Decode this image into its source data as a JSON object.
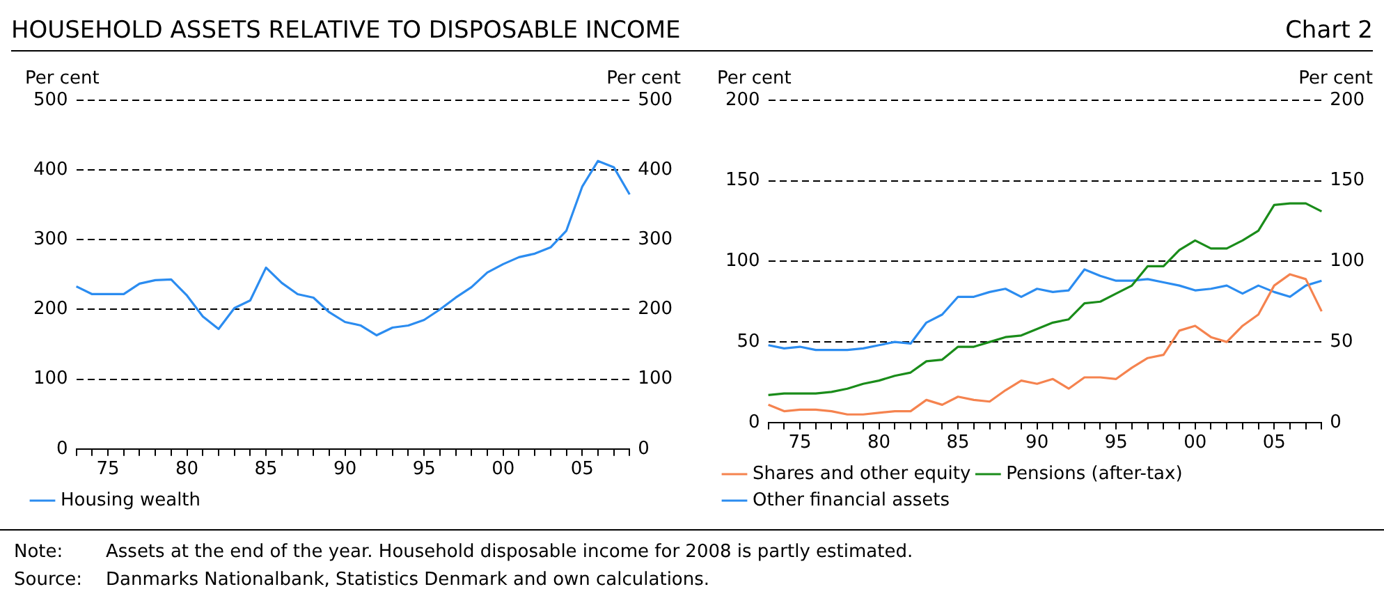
{
  "chart_data": [
    {
      "type": "line",
      "title": "HOUSEHOLD ASSETS RELATIVE TO DISPOSABLE INCOME",
      "ylabel": "Per cent",
      "y2label": "Per cent",
      "annotations": [
        "Chart 2",
        "Note:\tAssets at the end of the year. Household disposable income for 2008 is partly estimated.",
        "Source:\tDanmarks Nationalbank, Statistics Denmark and own calculations."
      ],
      "categories": [
        null,
        null,
        "75",
        null,
        null,
        null,
        null,
        "80",
        null,
        null,
        null,
        null,
        "85",
        null,
        null,
        null,
        null,
        "90",
        null,
        null,
        null,
        null,
        "95",
        null,
        null,
        null,
        null,
        "00",
        null,
        null,
        null,
        null,
        "05",
        null,
        null,
        null
      ],
      "series": [
        {
          "name": "Housing wealth",
          "color": "#2b8cf0",
          "values": [
            233,
            222,
            222,
            222,
            237,
            242,
            243,
            220,
            190,
            172,
            202,
            213,
            260,
            238,
            222,
            217,
            196,
            182,
            177,
            163,
            174,
            177,
            185,
            200,
            217,
            232,
            253,
            265,
            275,
            280,
            289,
            313,
            376,
            413,
            404,
            365
          ]
        }
      ],
      "ylim": [
        0,
        500
      ],
      "yticks": [
        0,
        100,
        200,
        300,
        400,
        500
      ],
      "y2lim": [
        0,
        500
      ],
      "y2ticks": [
        0,
        100,
        200,
        300,
        400,
        500
      ],
      "grid": "y",
      "legend": "bottom",
      "marker": "none",
      "line_style": "solid"
    },
    {
      "type": "line",
      "ylabel": "Per cent",
      "y2label": "Per cent",
      "categories": [
        null,
        null,
        "75",
        null,
        null,
        null,
        null,
        "80",
        null,
        null,
        null,
        null,
        "85",
        null,
        null,
        null,
        null,
        "90",
        null,
        null,
        null,
        null,
        "95",
        null,
        null,
        null,
        null,
        "00",
        null,
        null,
        null,
        null,
        "05",
        null,
        null,
        null
      ],
      "series": [
        {
          "name": "Shares and other equity",
          "color": "#f5834f",
          "values": [
            11,
            7,
            8,
            8,
            7,
            5,
            5,
            6,
            7,
            7,
            14,
            11,
            16,
            14,
            13,
            20,
            26,
            24,
            27,
            21,
            28,
            28,
            27,
            34,
            40,
            42,
            57,
            60,
            53,
            50,
            60,
            67,
            85,
            92,
            89,
            69
          ]
        },
        {
          "name": "Pensions (after-tax)",
          "color": "#1a8c1a",
          "values": [
            17,
            18,
            18,
            18,
            19,
            21,
            24,
            26,
            29,
            31,
            38,
            39,
            47,
            47,
            50,
            53,
            54,
            58,
            62,
            64,
            74,
            75,
            80,
            85,
            97,
            97,
            107,
            113,
            108,
            108,
            113,
            119,
            135,
            136,
            136,
            131
          ]
        },
        {
          "name": "Other financial assets",
          "color": "#2b8cf0",
          "values": [
            48,
            46,
            47,
            45,
            45,
            45,
            46,
            48,
            50,
            49,
            62,
            67,
            78,
            78,
            81,
            83,
            78,
            83,
            81,
            82,
            95,
            91,
            88,
            88,
            89,
            87,
            85,
            82,
            83,
            85,
            80,
            85,
            81,
            78,
            85,
            88
          ]
        }
      ],
      "ylim": [
        0,
        200
      ],
      "yticks": [
        0,
        50,
        100,
        150,
        200
      ],
      "y2lim": [
        0,
        200
      ],
      "y2ticks": [
        0,
        50,
        100,
        150,
        200
      ],
      "grid": "y",
      "legend": "bottom",
      "marker": "none",
      "line_style": "solid"
    }
  ]
}
